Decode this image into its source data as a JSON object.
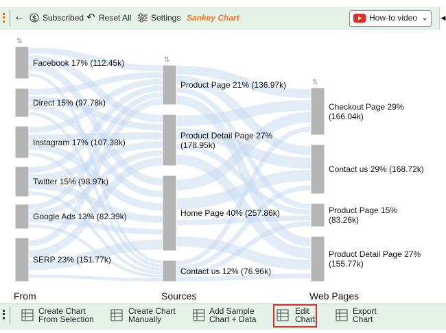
{
  "toolbar": {
    "items": [
      "Subscribed",
      "Reset All",
      "Settings"
    ],
    "chart_name": "Sankey Chart",
    "video": "How-to video"
  },
  "chart": {
    "columns": [
      {
        "title": "From",
        "nodes": [
          "Facebook 17% (112.45k)",
          "Direct 15% (97.78k)",
          "Instagram 17% (107.38k)",
          "Twitter 15% (98.97k)",
          "Google Ads 13% (82.39k)",
          "SERP 23% (151.77k)"
        ]
      },
      {
        "title": "Sources",
        "nodes": [
          "Product Page 21% (136.97k)",
          "Product Detail Page 27% (178.95k)",
          "Home Page 40% (257.86k)",
          "Contact us 12% (76.96k)"
        ]
      },
      {
        "title": "Web Pages",
        "nodes": [
          "Checkout Page 29% (166.04k)",
          "Contact us 29% (168.72k)",
          "Product Page 15% (83.26k)",
          "Product Detail Page 27% (155.77k)"
        ]
      }
    ]
  },
  "bottom_bar": {
    "buttons": [
      [
        "Create Chart",
        "From Selection"
      ],
      [
        "Create Chart",
        "Manually"
      ],
      [
        "Add Sample",
        "Chart + Data"
      ],
      [
        "Edit",
        "Chart"
      ],
      [
        "Export",
        "Chart"
      ]
    ]
  }
}
